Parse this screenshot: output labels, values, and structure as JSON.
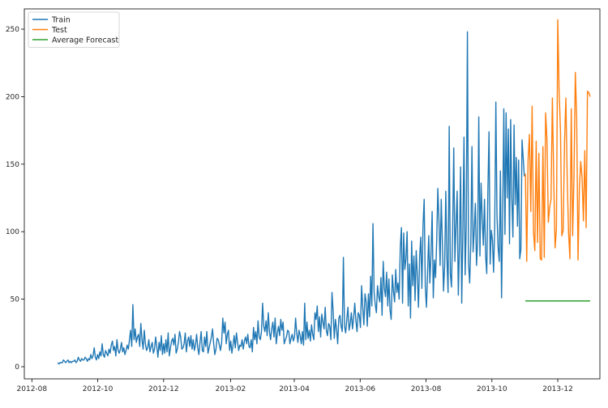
{
  "chart_data": {
    "type": "line",
    "title": "",
    "xlabel": "",
    "ylabel": "",
    "x_axis": {
      "type": "date",
      "range": [
        "2012-07-25",
        "2014-01-09"
      ],
      "ticks": [
        {
          "date": "2012-08-01",
          "label": "2012-08"
        },
        {
          "date": "2012-10-01",
          "label": "2012-10"
        },
        {
          "date": "2012-12-01",
          "label": "2012-12"
        },
        {
          "date": "2013-02-01",
          "label": "2013-02"
        },
        {
          "date": "2013-04-01",
          "label": "2013-04"
        },
        {
          "date": "2013-06-01",
          "label": "2013-06"
        },
        {
          "date": "2013-08-01",
          "label": "2013-08"
        },
        {
          "date": "2013-10-01",
          "label": "2013-10"
        },
        {
          "date": "2013-12-01",
          "label": "2013-12"
        }
      ]
    },
    "y_axis": {
      "range": [
        -9,
        265
      ],
      "ticks": [
        0,
        50,
        100,
        150,
        200,
        250
      ]
    },
    "grid": false,
    "legend": {
      "position": "top-left"
    },
    "series": [
      {
        "name": "Train",
        "color": "#1f77b4",
        "start": "2012-08-25",
        "end": "2013-10-31",
        "values": [
          3,
          2,
          3,
          3,
          3,
          5,
          4,
          3,
          4,
          5,
          3,
          4,
          3,
          4,
          4,
          5,
          3,
          4,
          7,
          5,
          4,
          6,
          5,
          5,
          7,
          6,
          4,
          6,
          5,
          9,
          6,
          8,
          14,
          7,
          5,
          9,
          6,
          11,
          8,
          17,
          9,
          7,
          12,
          10,
          8,
          13,
          10,
          16,
          19,
          12,
          15,
          8,
          20,
          12,
          10,
          13,
          18,
          11,
          14,
          9,
          12,
          16,
          13,
          20,
          27,
          15,
          46,
          20,
          28,
          18,
          22,
          24,
          15,
          32,
          20,
          13,
          27,
          17,
          12,
          14,
          20,
          11,
          15,
          18,
          10,
          13,
          22,
          15,
          7,
          18,
          12,
          23,
          9,
          17,
          10,
          20,
          11,
          25,
          8,
          14,
          19,
          21,
          16,
          24,
          10,
          13,
          18,
          26,
          22,
          13,
          14,
          17,
          25,
          11,
          19,
          22,
          15,
          23,
          13,
          20,
          12,
          16,
          24,
          14,
          9,
          18,
          26,
          12,
          11,
          22,
          15,
          26,
          10,
          14,
          18,
          22,
          28,
          17,
          9,
          13,
          21,
          20,
          16,
          12,
          18,
          36,
          25,
          33,
          17,
          24,
          27,
          12,
          19,
          10,
          16,
          23,
          14,
          25,
          18,
          12,
          16,
          15,
          20,
          13,
          19,
          22,
          17,
          24,
          15,
          14,
          20,
          11,
          29,
          20,
          26,
          17,
          34,
          22,
          20,
          26,
          47,
          30,
          26,
          34,
          23,
          40,
          26,
          20,
          28,
          33,
          22,
          36,
          17,
          25,
          30,
          23,
          35,
          27,
          33,
          17,
          20,
          22,
          27,
          26,
          17,
          21,
          24,
          19,
          22,
          36,
          25,
          18,
          27,
          23,
          17,
          26,
          16,
          47,
          20,
          33,
          21,
          27,
          19,
          31,
          24,
          20,
          40,
          35,
          45,
          26,
          37,
          22,
          39,
          33,
          28,
          44,
          27,
          23,
          32,
          30,
          20,
          55,
          41,
          21,
          35,
          28,
          17,
          36,
          38,
          30,
          26,
          81,
          30,
          25,
          35,
          44,
          27,
          32,
          40,
          28,
          36,
          47,
          34,
          26,
          40,
          38,
          29,
          60,
          44,
          31,
          54,
          48,
          30,
          54,
          37,
          67,
          45,
          106,
          55,
          46,
          40,
          60,
          52,
          48,
          66,
          38,
          78,
          58,
          52,
          70,
          45,
          65,
          42,
          35,
          68,
          56,
          48,
          72,
          55,
          62,
          50,
          88,
          103,
          47,
          99,
          72,
          80,
          100,
          45,
          76,
          36,
          93,
          60,
          82,
          49,
          86,
          67,
          44,
          81,
          96,
          58,
          105,
          124,
          59,
          44,
          70,
          97,
          62,
          83,
          115,
          51,
          79,
          66,
          93,
          132,
          108,
          75,
          124,
          92,
          56,
          75,
          130,
          80,
          55,
          178,
          69,
          59,
          99,
          162,
          78,
          105,
          130,
          53,
          89,
          148,
          47,
          99,
          170,
          68,
          105,
          248,
          76,
          62,
          92,
          163,
          85,
          101,
          121,
          75,
          93,
          185,
          82,
          136,
          110,
          90,
          124,
          82,
          69,
          130,
          174,
          76,
          101,
          94,
          70,
          104,
          196,
          112,
          88,
          78,
          145,
          51,
          114,
          191,
          98,
          188,
          125,
          176,
          91,
          183,
          125,
          96,
          179,
          120,
          155,
          104,
          153,
          80,
          87,
          168,
          155,
          141
        ]
      },
      {
        "name": "Test",
        "color": "#ff7f0e",
        "start": "2013-11-01",
        "end": "2013-12-31",
        "values": [
          143,
          78,
          153,
          172,
          115,
          193,
          100,
          86,
          167,
          92,
          158,
          80,
          79,
          163,
          81,
          188,
          168,
          107,
          118,
          124,
          199,
          140,
          88,
          102,
          257,
          204,
          175,
          97,
          101,
          166,
          199,
          139,
          99,
          80,
          191,
          97,
          140,
          218,
          185,
          79,
          132,
          152,
          140,
          108,
          160,
          103,
          204,
          203,
          200
        ]
      },
      {
        "name": "Average Forecast",
        "color": "#2ca02c",
        "start": "2013-11-01",
        "end": "2013-12-31",
        "values": [
          48.7,
          48.7
        ]
      }
    ]
  }
}
